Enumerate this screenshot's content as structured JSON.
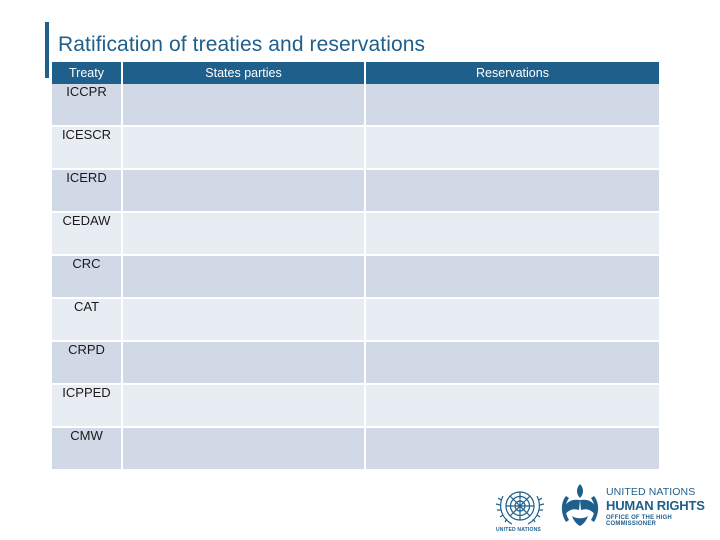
{
  "slide": {
    "title": "Ratification of treaties and reservations"
  },
  "table": {
    "headers": [
      "Treaty",
      "States parties",
      "Reservations"
    ],
    "rows": [
      {
        "treaty": "ICCPR",
        "states_parties": "",
        "reservations": ""
      },
      {
        "treaty": "ICESCR",
        "states_parties": "",
        "reservations": ""
      },
      {
        "treaty": "ICERD",
        "states_parties": "",
        "reservations": ""
      },
      {
        "treaty": "CEDAW",
        "states_parties": "",
        "reservations": ""
      },
      {
        "treaty": "CRC",
        "states_parties": "",
        "reservations": ""
      },
      {
        "treaty": "CAT",
        "states_parties": "",
        "reservations": ""
      },
      {
        "treaty": "CRPD",
        "states_parties": "",
        "reservations": ""
      },
      {
        "treaty": "ICPPED",
        "states_parties": "",
        "reservations": ""
      },
      {
        "treaty": "CMW",
        "states_parties": "",
        "reservations": ""
      }
    ]
  },
  "logos": {
    "un": {
      "icon": "un-emblem-icon",
      "caption": "UNITED NATIONS"
    },
    "ohchr": {
      "icon": "ohchr-hands-icon",
      "line1": "UNITED NATIONS",
      "line2": "HUMAN RIGHTS",
      "line3": "OFFICE OF THE HIGH COMMISSIONER"
    }
  },
  "colors": {
    "brand_blue": "#1f5f8b",
    "row_dark": "#d1d9e6",
    "row_light": "#e8ecf3"
  }
}
